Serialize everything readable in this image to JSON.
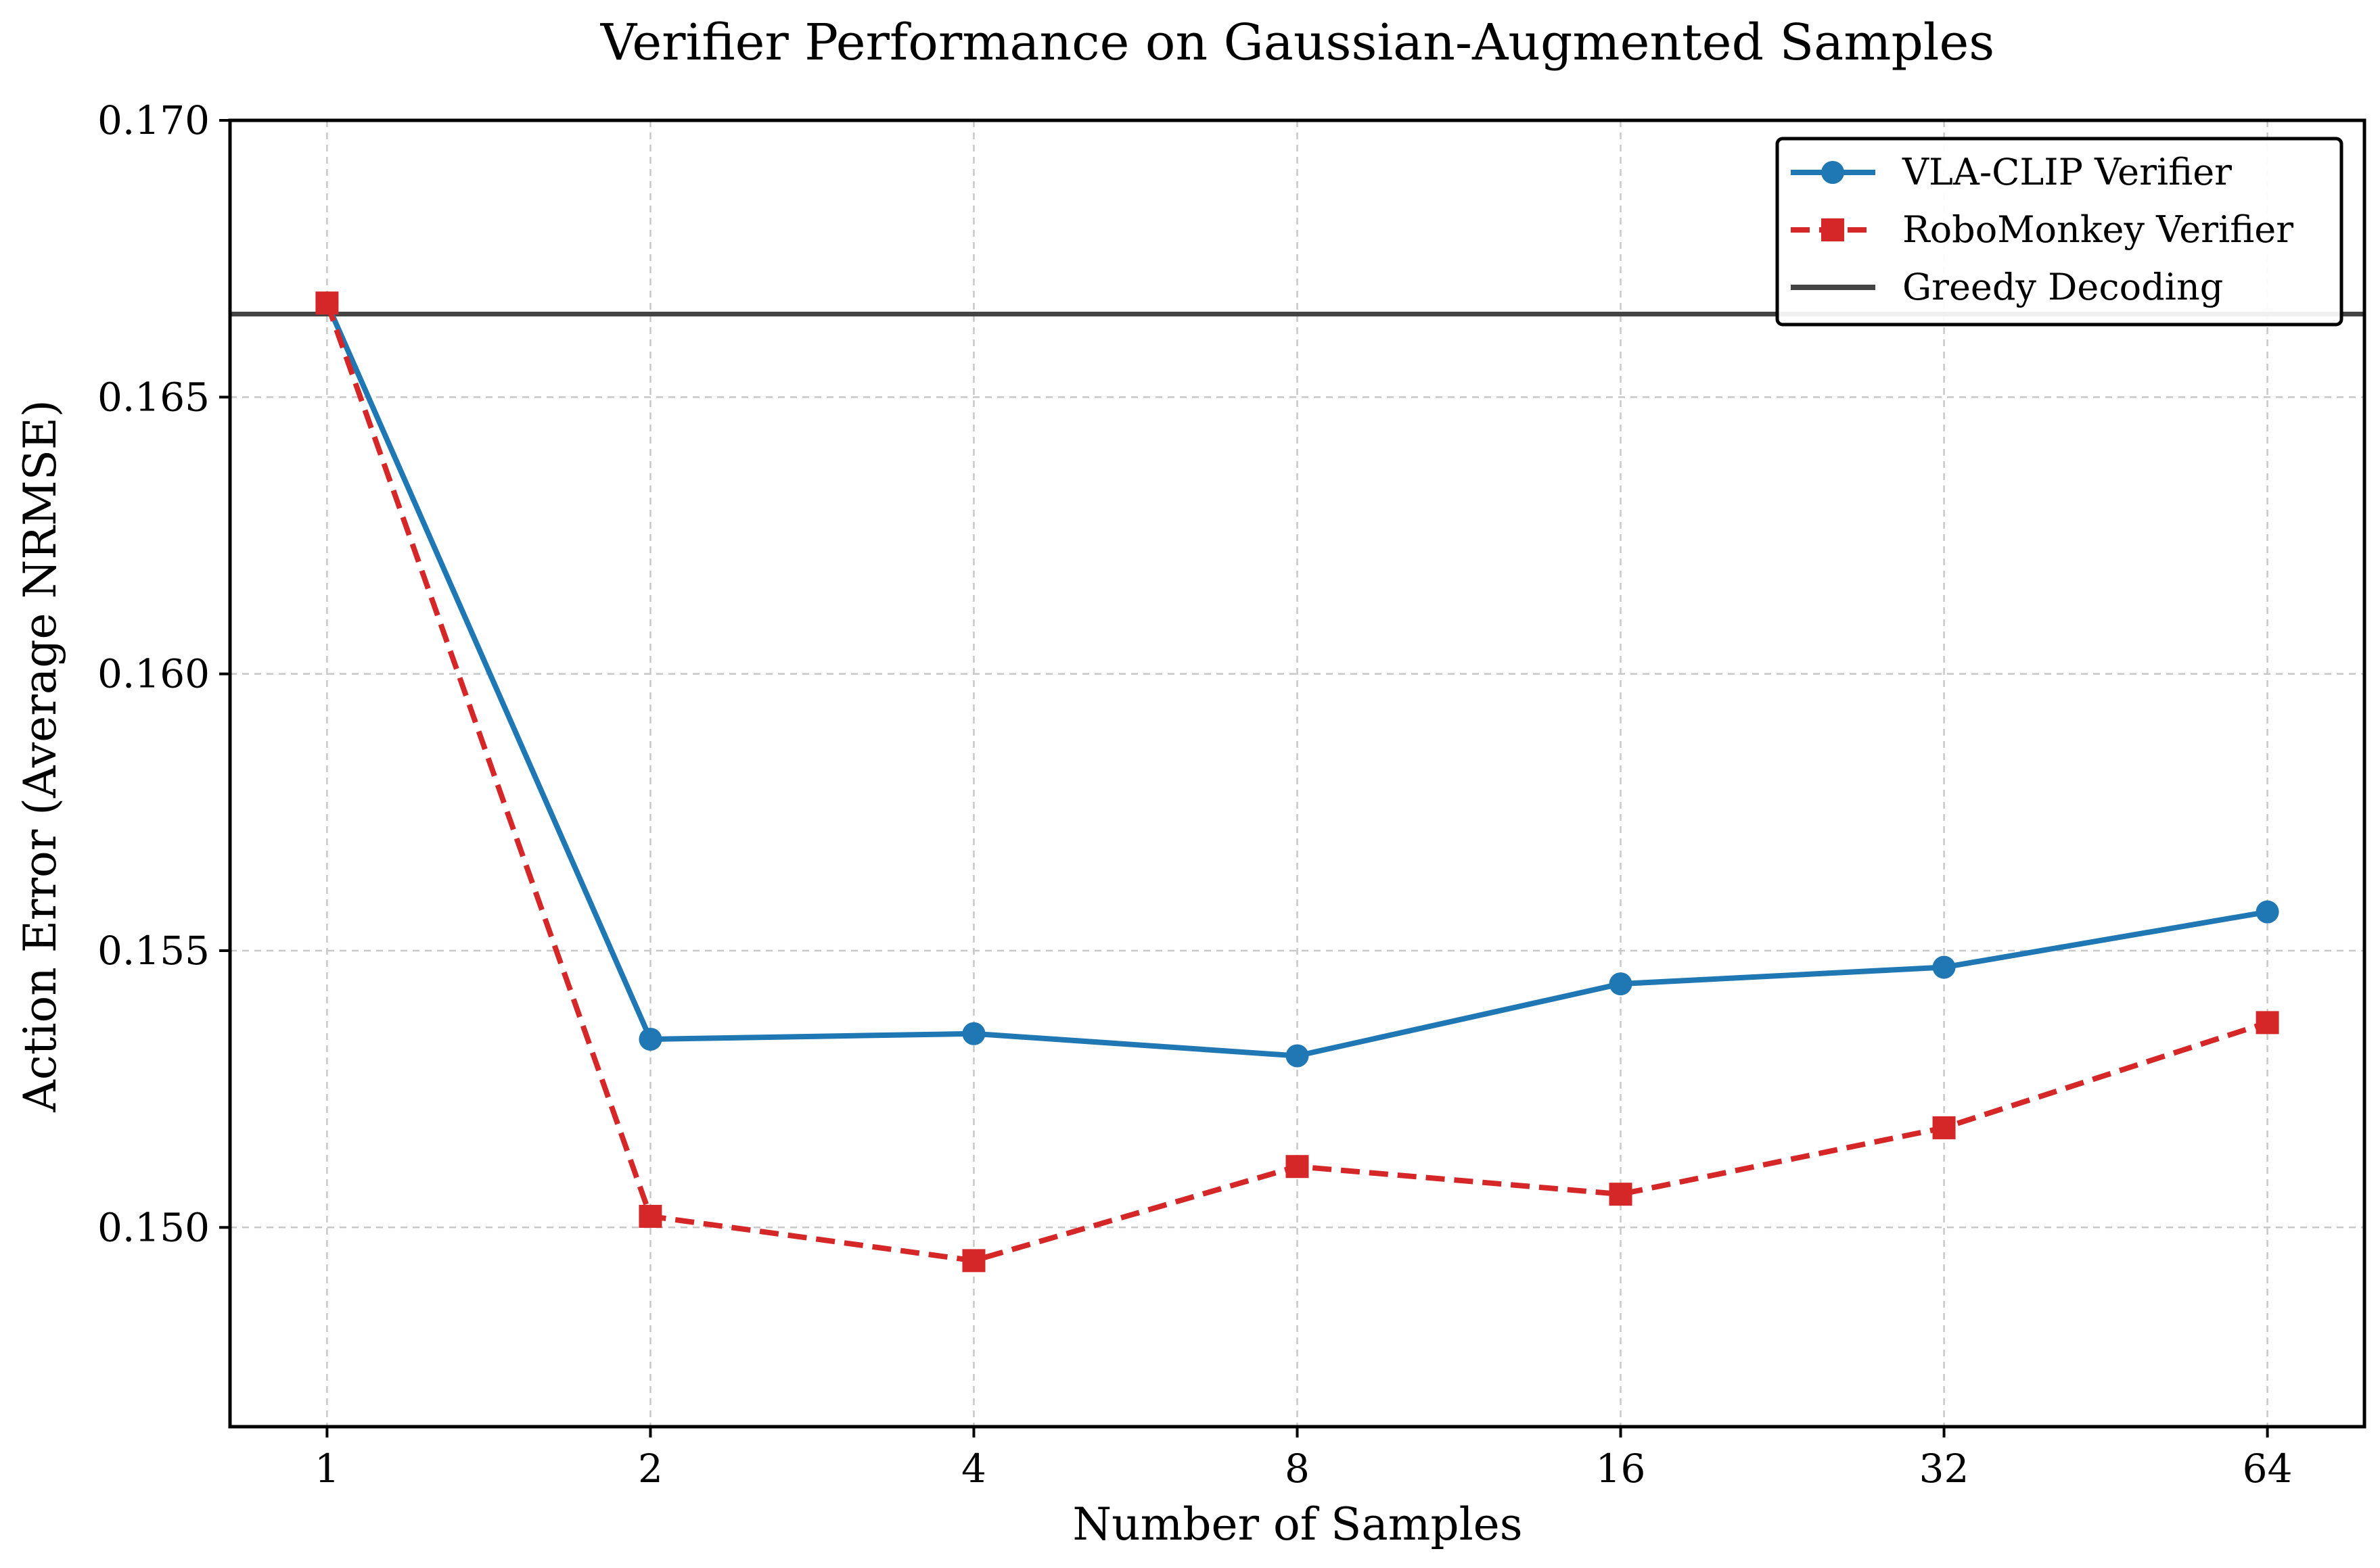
{
  "chart_data": {
    "type": "line",
    "title": "Verifier Performance on Gaussian-Augmented Samples",
    "xlabel": "Number of Samples",
    "ylabel": "Action Error (Average NRMSE)",
    "x_scale": "log2",
    "x": [
      1,
      2,
      4,
      8,
      16,
      32,
      64
    ],
    "x_tick_labels": [
      "1",
      "2",
      "4",
      "8",
      "16",
      "32",
      "64"
    ],
    "ylim": [
      0.1464,
      0.17
    ],
    "y_ticks": [
      0.15,
      0.155,
      0.16,
      0.165,
      0.17
    ],
    "y_tick_labels": [
      "0.150",
      "0.155",
      "0.160",
      "0.165",
      "0.170"
    ],
    "grid": true,
    "legend_position": "top-right",
    "series": [
      {
        "name": "VLA-CLIP Verifier",
        "color": "#1f77b4",
        "line_style": "solid",
        "marker": "circle",
        "values": [
          0.1667,
          0.1534,
          0.1535,
          0.1531,
          0.1544,
          0.1547,
          0.1557
        ]
      },
      {
        "name": "RoboMonkey Verifier",
        "color": "#d62728",
        "line_style": "dashed",
        "marker": "square",
        "values": [
          0.1667,
          0.1502,
          0.1494,
          0.1511,
          0.1506,
          0.1518,
          0.1537
        ]
      }
    ],
    "reference_lines": [
      {
        "name": "Greedy Decoding",
        "color": "#444444",
        "y": 0.1665
      }
    ]
  }
}
